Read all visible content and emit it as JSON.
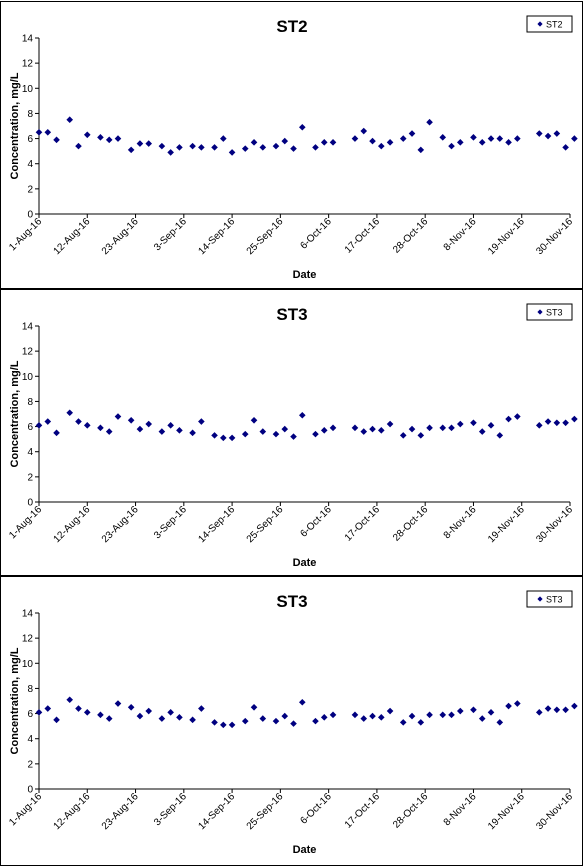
{
  "colors": {
    "marker": "#000080",
    "axis": "#000000",
    "background": "#ffffff"
  },
  "charts": [
    {
      "type": "scatter",
      "title": "ST2",
      "xlabel": "Date",
      "ylabel": "Concentration, mg/L",
      "legend": "ST2",
      "legend_position": "top-right",
      "ylim": [
        0,
        14
      ],
      "yticks": [
        "0",
        "2",
        "4",
        "6",
        "8",
        "10",
        "12",
        "14"
      ],
      "xlim": [
        "1-Aug-16",
        "30-Nov-16"
      ],
      "xticks": [
        "1-Aug-16",
        "12-Aug-16",
        "23-Aug-16",
        "3-Sep-16",
        "14-Sep-16",
        "25-Sep-16",
        "6-Oct-16",
        "17-Oct-16",
        "28-Oct-16",
        "8-Nov-16",
        "19-Nov-16",
        "30-Nov-16"
      ],
      "grid": false,
      "points": [
        {
          "x": "1-Aug-16",
          "y": 6.5
        },
        {
          "x": "3-Aug-16",
          "y": 6.5
        },
        {
          "x": "5-Aug-16",
          "y": 5.9
        },
        {
          "x": "8-Aug-16",
          "y": 7.5
        },
        {
          "x": "10-Aug-16",
          "y": 5.4
        },
        {
          "x": "12-Aug-16",
          "y": 6.3
        },
        {
          "x": "15-Aug-16",
          "y": 6.1
        },
        {
          "x": "17-Aug-16",
          "y": 5.9
        },
        {
          "x": "19-Aug-16",
          "y": 6.0
        },
        {
          "x": "22-Aug-16",
          "y": 5.1
        },
        {
          "x": "24-Aug-16",
          "y": 5.6
        },
        {
          "x": "26-Aug-16",
          "y": 5.6
        },
        {
          "x": "29-Aug-16",
          "y": 5.4
        },
        {
          "x": "31-Aug-16",
          "y": 4.9
        },
        {
          "x": "2-Sep-16",
          "y": 5.3
        },
        {
          "x": "5-Sep-16",
          "y": 5.4
        },
        {
          "x": "7-Sep-16",
          "y": 5.3
        },
        {
          "x": "10-Sep-16",
          "y": 5.3
        },
        {
          "x": "12-Sep-16",
          "y": 6.0
        },
        {
          "x": "14-Sep-16",
          "y": 4.9
        },
        {
          "x": "17-Sep-16",
          "y": 5.2
        },
        {
          "x": "19-Sep-16",
          "y": 5.7
        },
        {
          "x": "21-Sep-16",
          "y": 5.3
        },
        {
          "x": "24-Sep-16",
          "y": 5.4
        },
        {
          "x": "26-Sep-16",
          "y": 5.8
        },
        {
          "x": "28-Sep-16",
          "y": 5.2
        },
        {
          "x": "30-Sep-16",
          "y": 6.9
        },
        {
          "x": "3-Oct-16",
          "y": 5.3
        },
        {
          "x": "5-Oct-16",
          "y": 5.7
        },
        {
          "x": "7-Oct-16",
          "y": 5.7
        },
        {
          "x": "12-Oct-16",
          "y": 6.0
        },
        {
          "x": "14-Oct-16",
          "y": 6.6
        },
        {
          "x": "16-Oct-16",
          "y": 5.8
        },
        {
          "x": "18-Oct-16",
          "y": 5.4
        },
        {
          "x": "20-Oct-16",
          "y": 5.7
        },
        {
          "x": "23-Oct-16",
          "y": 6.0
        },
        {
          "x": "25-Oct-16",
          "y": 6.4
        },
        {
          "x": "27-Oct-16",
          "y": 5.1
        },
        {
          "x": "29-Oct-16",
          "y": 7.3
        },
        {
          "x": "1-Nov-16",
          "y": 6.1
        },
        {
          "x": "3-Nov-16",
          "y": 5.4
        },
        {
          "x": "5-Nov-16",
          "y": 5.7
        },
        {
          "x": "8-Nov-16",
          "y": 6.1
        },
        {
          "x": "10-Nov-16",
          "y": 5.7
        },
        {
          "x": "12-Nov-16",
          "y": 6.0
        },
        {
          "x": "14-Nov-16",
          "y": 6.0
        },
        {
          "x": "16-Nov-16",
          "y": 5.7
        },
        {
          "x": "18-Nov-16",
          "y": 6.0
        },
        {
          "x": "23-Nov-16",
          "y": 6.4
        },
        {
          "x": "25-Nov-16",
          "y": 6.2
        },
        {
          "x": "27-Nov-16",
          "y": 6.4
        },
        {
          "x": "29-Nov-16",
          "y": 5.3
        },
        {
          "x": "1-Dec-16",
          "y": 6.0
        }
      ]
    },
    {
      "type": "scatter",
      "title": "ST3",
      "xlabel": "Date",
      "ylabel": "Concentration, mg/L",
      "legend": "ST3",
      "legend_position": "top-right",
      "ylim": [
        0,
        14
      ],
      "yticks": [
        "0",
        "2",
        "4",
        "6",
        "8",
        "10",
        "12",
        "14"
      ],
      "xlim": [
        "1-Aug-16",
        "30-Nov-16"
      ],
      "xticks": [
        "1-Aug-16",
        "12-Aug-16",
        "23-Aug-16",
        "3-Sep-16",
        "14-Sep-16",
        "25-Sep-16",
        "6-Oct-16",
        "17-Oct-16",
        "28-Oct-16",
        "8-Nov-16",
        "19-Nov-16",
        "30-Nov-16"
      ],
      "grid": false,
      "points": [
        {
          "x": "1-Aug-16",
          "y": 6.1
        },
        {
          "x": "3-Aug-16",
          "y": 6.4
        },
        {
          "x": "5-Aug-16",
          "y": 5.5
        },
        {
          "x": "8-Aug-16",
          "y": 7.1
        },
        {
          "x": "10-Aug-16",
          "y": 6.4
        },
        {
          "x": "12-Aug-16",
          "y": 6.1
        },
        {
          "x": "15-Aug-16",
          "y": 5.9
        },
        {
          "x": "17-Aug-16",
          "y": 5.6
        },
        {
          "x": "19-Aug-16",
          "y": 6.8
        },
        {
          "x": "22-Aug-16",
          "y": 6.5
        },
        {
          "x": "24-Aug-16",
          "y": 5.8
        },
        {
          "x": "26-Aug-16",
          "y": 6.2
        },
        {
          "x": "29-Aug-16",
          "y": 5.6
        },
        {
          "x": "31-Aug-16",
          "y": 6.1
        },
        {
          "x": "2-Sep-16",
          "y": 5.7
        },
        {
          "x": "5-Sep-16",
          "y": 5.5
        },
        {
          "x": "7-Sep-16",
          "y": 6.4
        },
        {
          "x": "10-Sep-16",
          "y": 5.3
        },
        {
          "x": "12-Sep-16",
          "y": 5.1
        },
        {
          "x": "14-Sep-16",
          "y": 5.1
        },
        {
          "x": "17-Sep-16",
          "y": 5.4
        },
        {
          "x": "19-Sep-16",
          "y": 6.5
        },
        {
          "x": "21-Sep-16",
          "y": 5.6
        },
        {
          "x": "24-Sep-16",
          "y": 5.4
        },
        {
          "x": "26-Sep-16",
          "y": 5.8
        },
        {
          "x": "28-Sep-16",
          "y": 5.2
        },
        {
          "x": "30-Sep-16",
          "y": 6.9
        },
        {
          "x": "3-Oct-16",
          "y": 5.4
        },
        {
          "x": "5-Oct-16",
          "y": 5.7
        },
        {
          "x": "7-Oct-16",
          "y": 5.9
        },
        {
          "x": "12-Oct-16",
          "y": 5.9
        },
        {
          "x": "14-Oct-16",
          "y": 5.6
        },
        {
          "x": "16-Oct-16",
          "y": 5.8
        },
        {
          "x": "18-Oct-16",
          "y": 5.7
        },
        {
          "x": "20-Oct-16",
          "y": 6.2
        },
        {
          "x": "23-Oct-16",
          "y": 5.3
        },
        {
          "x": "25-Oct-16",
          "y": 5.8
        },
        {
          "x": "27-Oct-16",
          "y": 5.3
        },
        {
          "x": "29-Oct-16",
          "y": 5.9
        },
        {
          "x": "1-Nov-16",
          "y": 5.9
        },
        {
          "x": "3-Nov-16",
          "y": 5.9
        },
        {
          "x": "5-Nov-16",
          "y": 6.2
        },
        {
          "x": "8-Nov-16",
          "y": 6.3
        },
        {
          "x": "10-Nov-16",
          "y": 5.6
        },
        {
          "x": "12-Nov-16",
          "y": 6.1
        },
        {
          "x": "14-Nov-16",
          "y": 5.3
        },
        {
          "x": "16-Nov-16",
          "y": 6.6
        },
        {
          "x": "18-Nov-16",
          "y": 6.8
        },
        {
          "x": "23-Nov-16",
          "y": 6.1
        },
        {
          "x": "25-Nov-16",
          "y": 6.4
        },
        {
          "x": "27-Nov-16",
          "y": 6.3
        },
        {
          "x": "29-Nov-16",
          "y": 6.3
        },
        {
          "x": "1-Dec-16",
          "y": 6.6
        }
      ]
    },
    {
      "type": "scatter",
      "title": "ST3",
      "xlabel": "Date",
      "ylabel": "Concentration, mg/L",
      "legend": "ST3",
      "legend_position": "top-right",
      "ylim": [
        0,
        14
      ],
      "yticks": [
        "0",
        "2",
        "4",
        "6",
        "8",
        "10",
        "12",
        "14"
      ],
      "xlim": [
        "1-Aug-16",
        "30-Nov-16"
      ],
      "xticks": [
        "1-Aug-16",
        "12-Aug-16",
        "23-Aug-16",
        "3-Sep-16",
        "14-Sep-16",
        "25-Sep-16",
        "6-Oct-16",
        "17-Oct-16",
        "28-Oct-16",
        "8-Nov-16",
        "19-Nov-16",
        "30-Nov-16"
      ],
      "grid": false,
      "points": [
        {
          "x": "1-Aug-16",
          "y": 6.1
        },
        {
          "x": "3-Aug-16",
          "y": 6.4
        },
        {
          "x": "5-Aug-16",
          "y": 5.5
        },
        {
          "x": "8-Aug-16",
          "y": 7.1
        },
        {
          "x": "10-Aug-16",
          "y": 6.4
        },
        {
          "x": "12-Aug-16",
          "y": 6.1
        },
        {
          "x": "15-Aug-16",
          "y": 5.9
        },
        {
          "x": "17-Aug-16",
          "y": 5.6
        },
        {
          "x": "19-Aug-16",
          "y": 6.8
        },
        {
          "x": "22-Aug-16",
          "y": 6.5
        },
        {
          "x": "24-Aug-16",
          "y": 5.8
        },
        {
          "x": "26-Aug-16",
          "y": 6.2
        },
        {
          "x": "29-Aug-16",
          "y": 5.6
        },
        {
          "x": "31-Aug-16",
          "y": 6.1
        },
        {
          "x": "2-Sep-16",
          "y": 5.7
        },
        {
          "x": "5-Sep-16",
          "y": 5.5
        },
        {
          "x": "7-Sep-16",
          "y": 6.4
        },
        {
          "x": "10-Sep-16",
          "y": 5.3
        },
        {
          "x": "12-Sep-16",
          "y": 5.1
        },
        {
          "x": "14-Sep-16",
          "y": 5.1
        },
        {
          "x": "17-Sep-16",
          "y": 5.4
        },
        {
          "x": "19-Sep-16",
          "y": 6.5
        },
        {
          "x": "21-Sep-16",
          "y": 5.6
        },
        {
          "x": "24-Sep-16",
          "y": 5.4
        },
        {
          "x": "26-Sep-16",
          "y": 5.8
        },
        {
          "x": "28-Sep-16",
          "y": 5.2
        },
        {
          "x": "30-Sep-16",
          "y": 6.9
        },
        {
          "x": "3-Oct-16",
          "y": 5.4
        },
        {
          "x": "5-Oct-16",
          "y": 5.7
        },
        {
          "x": "7-Oct-16",
          "y": 5.9
        },
        {
          "x": "12-Oct-16",
          "y": 5.9
        },
        {
          "x": "14-Oct-16",
          "y": 5.6
        },
        {
          "x": "16-Oct-16",
          "y": 5.8
        },
        {
          "x": "18-Oct-16",
          "y": 5.7
        },
        {
          "x": "20-Oct-16",
          "y": 6.2
        },
        {
          "x": "23-Oct-16",
          "y": 5.3
        },
        {
          "x": "25-Oct-16",
          "y": 5.8
        },
        {
          "x": "27-Oct-16",
          "y": 5.3
        },
        {
          "x": "29-Oct-16",
          "y": 5.9
        },
        {
          "x": "1-Nov-16",
          "y": 5.9
        },
        {
          "x": "3-Nov-16",
          "y": 5.9
        },
        {
          "x": "5-Nov-16",
          "y": 6.2
        },
        {
          "x": "8-Nov-16",
          "y": 6.3
        },
        {
          "x": "10-Nov-16",
          "y": 5.6
        },
        {
          "x": "12-Nov-16",
          "y": 6.1
        },
        {
          "x": "14-Nov-16",
          "y": 5.3
        },
        {
          "x": "16-Nov-16",
          "y": 6.6
        },
        {
          "x": "18-Nov-16",
          "y": 6.8
        },
        {
          "x": "23-Nov-16",
          "y": 6.1
        },
        {
          "x": "25-Nov-16",
          "y": 6.4
        },
        {
          "x": "27-Nov-16",
          "y": 6.3
        },
        {
          "x": "29-Nov-16",
          "y": 6.3
        },
        {
          "x": "1-Dec-16",
          "y": 6.6
        }
      ]
    }
  ]
}
